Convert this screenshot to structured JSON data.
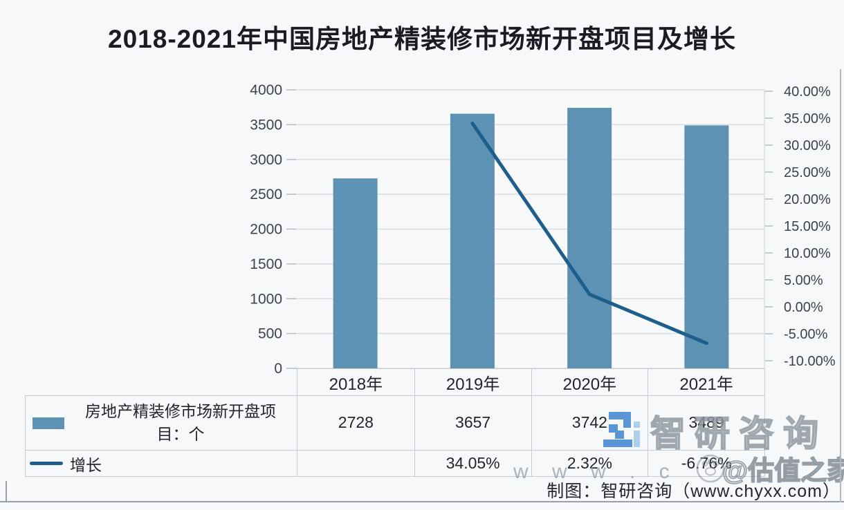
{
  "title": "2018-2021年中国房地产精装修市场新开盘项目及增长",
  "chart_data": {
    "type": "bar",
    "subtype": "bar+line-dual-axis",
    "title": "2018-2021年中国房地产精装修市场新开盘项目及增长",
    "categories": [
      "2018年",
      "2019年",
      "2020年",
      "2021年"
    ],
    "series": [
      {
        "name": "房地产精装修市场新开盘项目：个",
        "chart": "bar",
        "axis": "left",
        "color": "#5d92b4",
        "values": [
          2728,
          3657,
          3742,
          3489
        ]
      },
      {
        "name": "增长",
        "chart": "line",
        "axis": "right",
        "color": "#1d5e8c",
        "unit": "%",
        "values": [
          null,
          34.05,
          2.32,
          -6.76
        ]
      }
    ],
    "left_axis": {
      "min": 0,
      "max": 4000,
      "step": 500,
      "labels": [
        "4000",
        "3500",
        "3000",
        "2500",
        "2000",
        "1500",
        "1000",
        "500",
        "0"
      ]
    },
    "right_axis": {
      "min": -10,
      "max": 40,
      "step": 5,
      "labels": [
        "40.00%",
        "35.00%",
        "30.00%",
        "25.00%",
        "20.00%",
        "15.00%",
        "10.00%",
        "5.00%",
        "0.00%",
        "-5.00%",
        "-10.00%"
      ]
    },
    "grid": true,
    "legend_position": "bottom-left-table"
  },
  "table": {
    "years": [
      "2018年",
      "2019年",
      "2020年",
      "2021年"
    ],
    "row1": {
      "label": "房地产精装修市场新开盘项目：个",
      "values": [
        "2728",
        "3657",
        "3742",
        "3489"
      ]
    },
    "row2": {
      "label": "增长",
      "values": [
        "",
        "34.05%",
        "2.32%",
        "-6.76%"
      ]
    }
  },
  "legend": {
    "bar_label": "房地产精装修市场新开盘项目：个",
    "line_label": "增长"
  },
  "watermarks": {
    "brand": "智研咨询",
    "url_partial": "w w w . c",
    "social": "@估值之家"
  },
  "credit": "制图：智研咨询（www.chyxx.com）",
  "colors": {
    "bar": "#5d92b4",
    "line": "#1d5e8c",
    "grid": "#d9dde1",
    "tick": "#b6bcc3",
    "axis_text": "#3d424b",
    "border": "#c6cbd1",
    "background": "#f6f8f9"
  }
}
